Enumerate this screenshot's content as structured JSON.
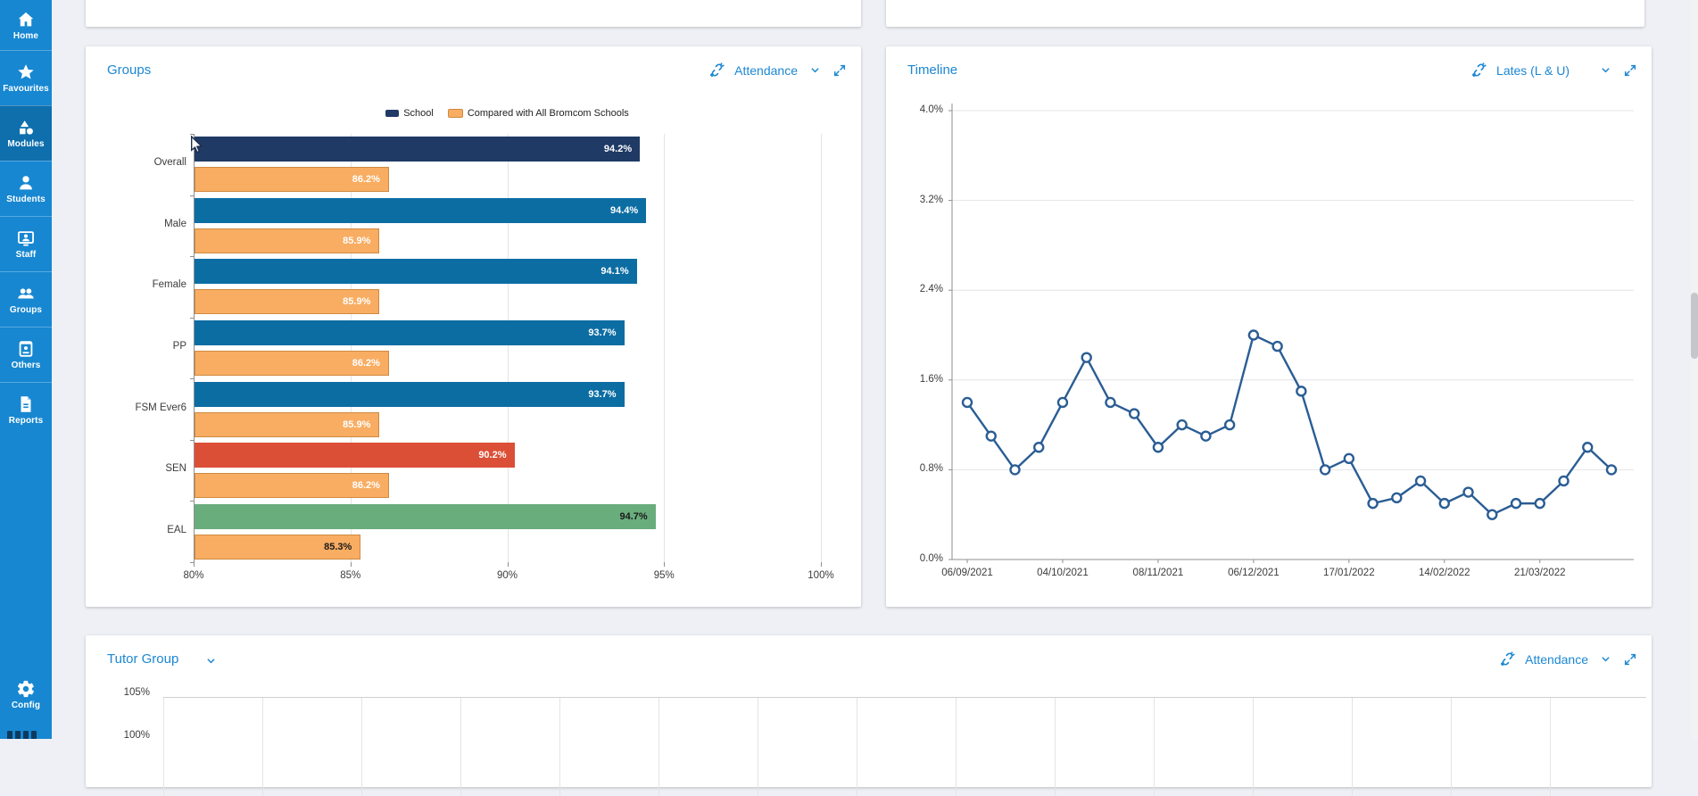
{
  "sidebar": {
    "items": [
      {
        "label": "Home",
        "icon": "home-icon",
        "active": false
      },
      {
        "label": "Favourites",
        "icon": "star-icon",
        "active": false
      },
      {
        "label": "Modules",
        "icon": "modules-icon",
        "active": true
      },
      {
        "label": "Students",
        "icon": "student-icon",
        "active": false
      },
      {
        "label": "Staff",
        "icon": "staff-icon",
        "active": false
      },
      {
        "label": "Groups",
        "icon": "groups-icon",
        "active": false
      },
      {
        "label": "Others",
        "icon": "others-icon",
        "active": false
      },
      {
        "label": "Reports",
        "icon": "reports-icon",
        "active": false
      }
    ],
    "config_label": "Config",
    "colors": {
      "bg": "#1787d1",
      "active_bg": "#0f6fad",
      "text": "#ffffff"
    }
  },
  "groups_card": {
    "title": "Groups",
    "metric": "Attendance"
  },
  "timeline_card": {
    "title": "Timeline",
    "metric": "Lates (L & U)"
  },
  "tutor_card": {
    "title": "Tutor Group",
    "metric": "Attendance",
    "y_ticks": [
      "105%",
      "100%"
    ]
  },
  "chart_data": [
    {
      "type": "bar",
      "orientation": "horizontal",
      "title": "Groups - Attendance",
      "categories": [
        "Overall",
        "Male",
        "Female",
        "PP",
        "FSM Ever6",
        "SEN",
        "EAL"
      ],
      "series": [
        {
          "name": "School",
          "values": [
            94.2,
            94.4,
            94.1,
            93.7,
            93.7,
            90.2,
            94.7
          ],
          "bar_colors": [
            "#1f3a64",
            "#0c6da3",
            "#0c6da3",
            "#0c6da3",
            "#0c6da3",
            "#dc4f37",
            "#69ad7d"
          ],
          "label_colors": [
            "#ffffff",
            "#ffffff",
            "#ffffff",
            "#ffffff",
            "#ffffff",
            "#ffffff",
            "#1a1a1a"
          ]
        },
        {
          "name": "Compared with All Bromcom Schools",
          "values": [
            86.2,
            85.9,
            85.9,
            86.2,
            85.9,
            86.2,
            85.3
          ],
          "color": "#f8ad62",
          "border_color": "#cf8a42",
          "label_colors": [
            "#ffffff",
            "#ffffff",
            "#ffffff",
            "#ffffff",
            "#ffffff",
            "#ffffff",
            "#1a1a1a"
          ]
        }
      ],
      "xlim": [
        80,
        100
      ],
      "x_ticks": [
        "80%",
        "85%",
        "90%",
        "95%",
        "100%"
      ],
      "grid": true,
      "legend_position": "top"
    },
    {
      "type": "line",
      "title": "Timeline - Lates (L & U)",
      "values": [
        1.4,
        1.1,
        0.8,
        1.0,
        1.4,
        1.8,
        1.4,
        1.3,
        1.0,
        1.2,
        1.1,
        1.2,
        2.0,
        1.9,
        1.5,
        0.8,
        0.9,
        0.5,
        0.55,
        0.7,
        0.5,
        0.6,
        0.4,
        0.5,
        0.5,
        0.7,
        1.0,
        0.8
      ],
      "x_tick_labels": [
        "06/09/2021",
        "04/10/2021",
        "08/11/2021",
        "06/12/2021",
        "17/01/2022",
        "14/02/2022",
        "21/03/2022"
      ],
      "x_label_every": 4,
      "ylim": [
        0,
        4
      ],
      "y_ticks": [
        "4.0%",
        "3.2%",
        "2.4%",
        "1.6%",
        "0.8%",
        "0.0%"
      ],
      "line_color": "#2a5d94",
      "marker": "open-circle",
      "grid": true
    },
    {
      "type": "line",
      "title": "Tutor Group - Attendance",
      "y_ticks_visible": [
        "105%",
        "100%"
      ],
      "values": [],
      "note": "chart clipped at bottom of viewport; only empty grid visible"
    }
  ]
}
